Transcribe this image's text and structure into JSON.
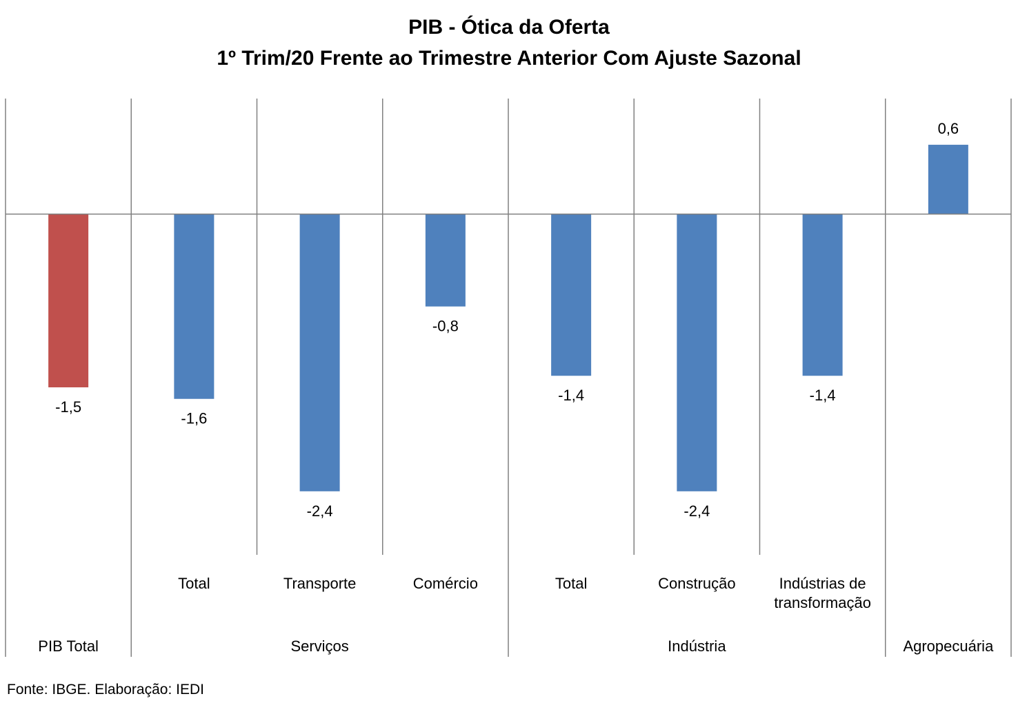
{
  "chart_data": {
    "type": "bar",
    "title": "PIB - Ótica da Oferta",
    "subtitle": "1º Trim/20 Frente ao Trimestre Anterior Com Ajuste Sazonal",
    "categories": [
      {
        "label": "",
        "group": "PIB Total"
      },
      {
        "label": "Total",
        "group": "Serviços"
      },
      {
        "label": "Transporte",
        "group": "Serviços"
      },
      {
        "label": "Comércio",
        "group": "Serviços"
      },
      {
        "label": "Total",
        "group": "Indústria"
      },
      {
        "label": "Construção",
        "group": "Indústria"
      },
      {
        "label": "Indústrias de transformação",
        "group": "Indústria"
      },
      {
        "label": "",
        "group": "Agropecuária"
      }
    ],
    "groups": [
      "PIB Total",
      "Serviços",
      "Indústria",
      "Agropecuária"
    ],
    "values": [
      -1.5,
      -1.6,
      -2.4,
      -0.8,
      -1.4,
      -2.4,
      -1.4,
      0.6
    ],
    "value_labels": [
      "-1,5",
      "-1,6",
      "-2,4",
      "-0,8",
      "-1,4",
      "-2,4",
      "-1,4",
      "0,6"
    ],
    "ylim": [
      -2.95,
      1.0
    ],
    "grid": false,
    "legend": "none",
    "colors": {
      "highlight": "#C0504D",
      "default": "#4F81BD",
      "axis": "#808080",
      "text": "#000000"
    }
  },
  "source": "Fonte: IBGE. Elaboração: IEDI"
}
